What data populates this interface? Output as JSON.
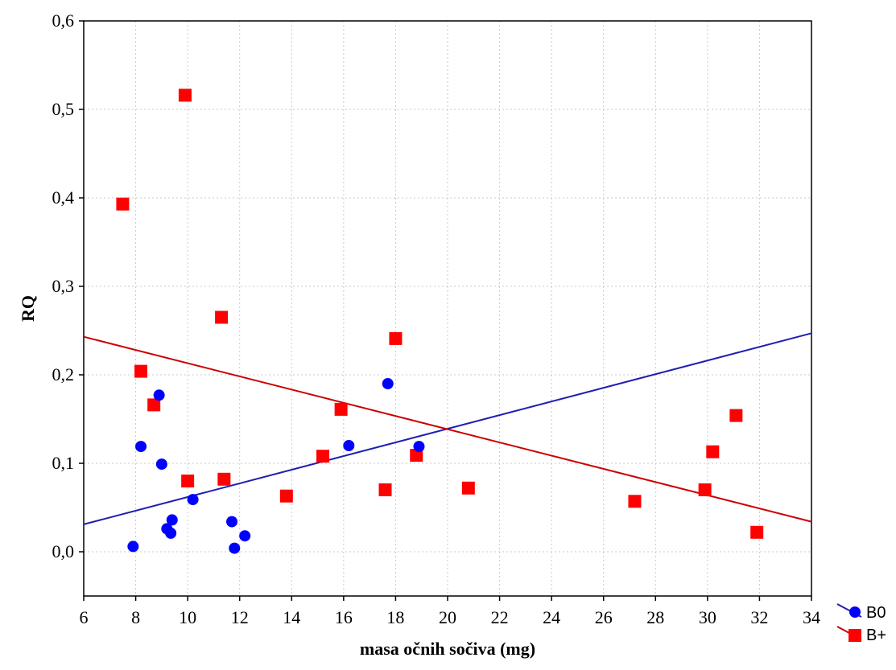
{
  "chart_data": {
    "type": "scatter",
    "title": "",
    "xlabel": "masa očnih sočiva (mg)",
    "ylabel": "RQ",
    "xlim": [
      6,
      34
    ],
    "ylim": [
      -0.05,
      0.6
    ],
    "xticks": [
      6,
      8,
      10,
      12,
      14,
      16,
      18,
      20,
      22,
      24,
      26,
      28,
      30,
      32,
      34
    ],
    "yticks": [
      0.0,
      0.1,
      0.2,
      0.3,
      0.4,
      0.5,
      0.6
    ],
    "xtick_labels": [
      "6",
      "8",
      "10",
      "12",
      "14",
      "16",
      "18",
      "20",
      "22",
      "24",
      "26",
      "28",
      "30",
      "32",
      "34"
    ],
    "ytick_labels": [
      "0,0",
      "0,1",
      "0,2",
      "0,3",
      "0,4",
      "0,5",
      "0,6"
    ],
    "grid": true,
    "legend_position": "bottom-right",
    "series": [
      {
        "name": "B0",
        "marker": "circle",
        "color": "#0000ff",
        "line_color": "#1f1fb4",
        "points": [
          {
            "x": 7.9,
            "y": 0.006
          },
          {
            "x": 8.2,
            "y": 0.119
          },
          {
            "x": 8.9,
            "y": 0.177
          },
          {
            "x": 9.0,
            "y": 0.099
          },
          {
            "x": 9.2,
            "y": 0.026
          },
          {
            "x": 9.35,
            "y": 0.021
          },
          {
            "x": 9.4,
            "y": 0.036
          },
          {
            "x": 10.2,
            "y": 0.059
          },
          {
            "x": 11.7,
            "y": 0.034
          },
          {
            "x": 11.8,
            "y": 0.004
          },
          {
            "x": 12.2,
            "y": 0.018
          },
          {
            "x": 16.2,
            "y": 0.12
          },
          {
            "x": 17.7,
            "y": 0.19
          },
          {
            "x": 18.9,
            "y": 0.119
          }
        ],
        "fit_line": [
          [
            6,
            0.031
          ],
          [
            34,
            0.247
          ]
        ]
      },
      {
        "name": "B+",
        "marker": "square",
        "color": "#ff0000",
        "line_color": "#cc0000",
        "points": [
          {
            "x": 7.5,
            "y": 0.393
          },
          {
            "x": 8.2,
            "y": 0.204
          },
          {
            "x": 8.7,
            "y": 0.166
          },
          {
            "x": 9.9,
            "y": 0.516
          },
          {
            "x": 10.0,
            "y": 0.08
          },
          {
            "x": 11.3,
            "y": 0.265
          },
          {
            "x": 11.4,
            "y": 0.082
          },
          {
            "x": 13.8,
            "y": 0.063
          },
          {
            "x": 15.2,
            "y": 0.108
          },
          {
            "x": 15.9,
            "y": 0.161
          },
          {
            "x": 17.6,
            "y": 0.07
          },
          {
            "x": 18.0,
            "y": 0.241
          },
          {
            "x": 18.8,
            "y": 0.109
          },
          {
            "x": 20.8,
            "y": 0.072
          },
          {
            "x": 27.2,
            "y": 0.057
          },
          {
            "x": 29.9,
            "y": 0.07
          },
          {
            "x": 30.2,
            "y": 0.113
          },
          {
            "x": 31.1,
            "y": 0.154
          },
          {
            "x": 31.9,
            "y": 0.022
          }
        ],
        "fit_line": [
          [
            6,
            0.243
          ],
          [
            34,
            0.034
          ]
        ]
      }
    ]
  }
}
